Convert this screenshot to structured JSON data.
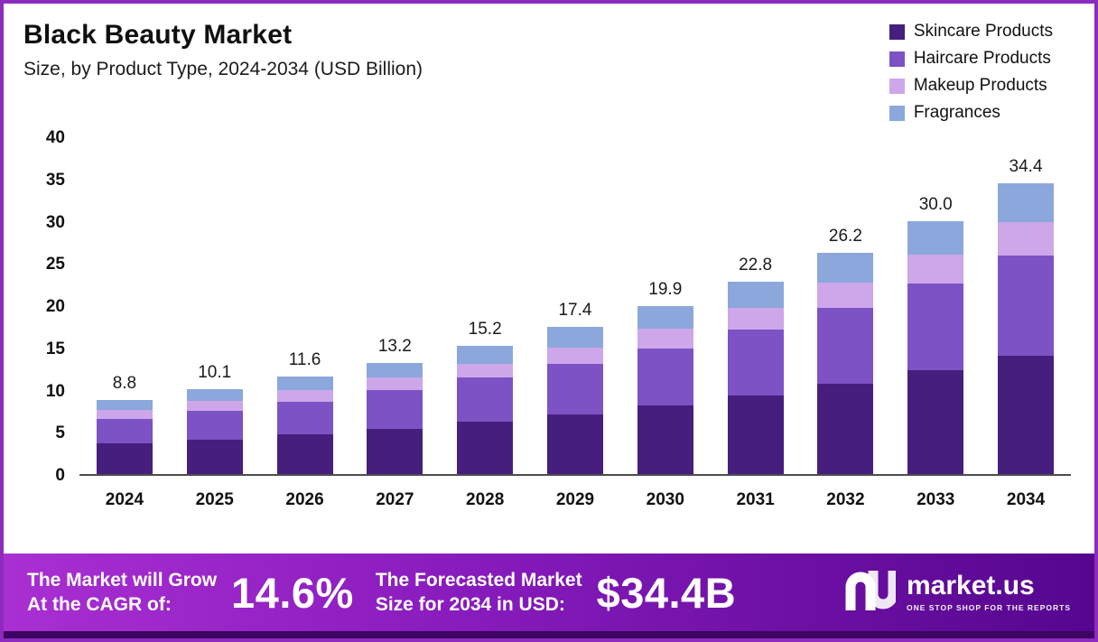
{
  "header": {
    "title": "Black Beauty Market",
    "subtitle": "Size, by Product Type, 2024-2034 (USD Billion)"
  },
  "chart_data": {
    "type": "bar",
    "stacked": true,
    "title": "Black Beauty Market",
    "subtitle": "Size, by Product Type, 2024-2034 (USD Billion)",
    "categories": [
      "2024",
      "2025",
      "2026",
      "2027",
      "2028",
      "2029",
      "2030",
      "2031",
      "2032",
      "2033",
      "2034"
    ],
    "totals": [
      "8.8",
      "10.1",
      "11.6",
      "13.2",
      "15.2",
      "17.4",
      "19.9",
      "22.8",
      "26.2",
      "30.0",
      "34.4"
    ],
    "series": [
      {
        "name": "Skincare Products",
        "color": "#461e7d",
        "values": [
          3.6,
          4.1,
          4.7,
          5.4,
          6.2,
          7.1,
          8.1,
          9.3,
          10.7,
          12.3,
          14.0
        ]
      },
      {
        "name": "Haircare Products",
        "color": "#7d52c4",
        "values": [
          2.9,
          3.4,
          3.9,
          4.5,
          5.2,
          5.9,
          6.8,
          7.8,
          9.0,
          10.3,
          11.9
        ]
      },
      {
        "name": "Makeup Products",
        "color": "#cda7ea",
        "values": [
          1.1,
          1.2,
          1.4,
          1.5,
          1.7,
          2.0,
          2.3,
          2.6,
          3.0,
          3.4,
          3.9
        ]
      },
      {
        "name": "Fragrances",
        "color": "#8ba7dc",
        "values": [
          1.2,
          1.4,
          1.6,
          1.8,
          2.1,
          2.4,
          2.7,
          3.1,
          3.5,
          4.0,
          4.6
        ]
      }
    ],
    "ylim": [
      0,
      40
    ],
    "yticks": [
      0,
      5,
      10,
      15,
      20,
      25,
      30,
      35,
      40
    ],
    "xlabel": "",
    "ylabel": "",
    "grid": false,
    "legend_position": "top-right"
  },
  "banner": {
    "cagr_label_line1": "The Market will Grow",
    "cagr_label_line2": "At the CAGR of:",
    "cagr_value": "14.6%",
    "forecast_label_line1": "The Forecasted Market",
    "forecast_label_line2": "Size for 2034 in USD:",
    "forecast_value": "$34.4B",
    "brand": "market.us",
    "brand_tagline": "ONE STOP SHOP FOR THE REPORTS"
  }
}
